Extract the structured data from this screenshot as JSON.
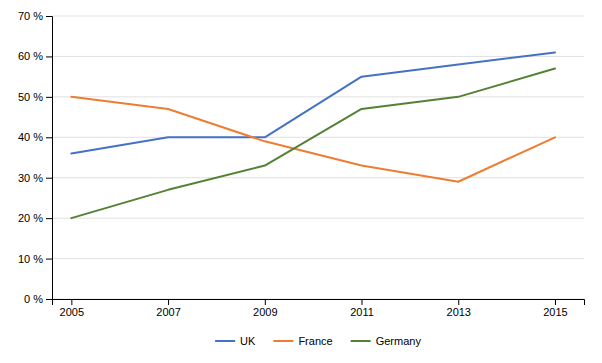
{
  "chart_data": {
    "type": "line",
    "x": [
      2005,
      2007,
      2009,
      2011,
      2013,
      2015
    ],
    "series": [
      {
        "name": "UK",
        "color": "#4472C4",
        "values": [
          0.36,
          0.4,
          0.4,
          0.55,
          0.58,
          0.61
        ]
      },
      {
        "name": "France",
        "color": "#ED7D31",
        "values": [
          0.5,
          0.47,
          0.39,
          0.33,
          0.29,
          0.4
        ]
      },
      {
        "name": "Germany",
        "color": "#548235",
        "values": [
          0.2,
          0.27,
          0.33,
          0.47,
          0.5,
          0.57
        ]
      }
    ],
    "xlim": [
      2004.6,
      2015.6
    ],
    "xticks": [
      2005,
      2007,
      2009,
      2011,
      2013,
      2015
    ],
    "ylim": [
      0.0,
      0.7
    ],
    "yticks": [
      {
        "value": 0.0,
        "label": "0 %"
      },
      {
        "value": 0.1,
        "label": "10 %"
      },
      {
        "value": 0.2,
        "label": "20 %"
      },
      {
        "value": 0.3,
        "label": "30 %"
      },
      {
        "value": 0.4,
        "label": "40 %"
      },
      {
        "value": 0.5,
        "label": "50 %"
      },
      {
        "value": 0.6,
        "label": "60 %"
      },
      {
        "value": 0.7,
        "label": "70 %"
      }
    ],
    "grid": true,
    "legend": "bottom"
  }
}
